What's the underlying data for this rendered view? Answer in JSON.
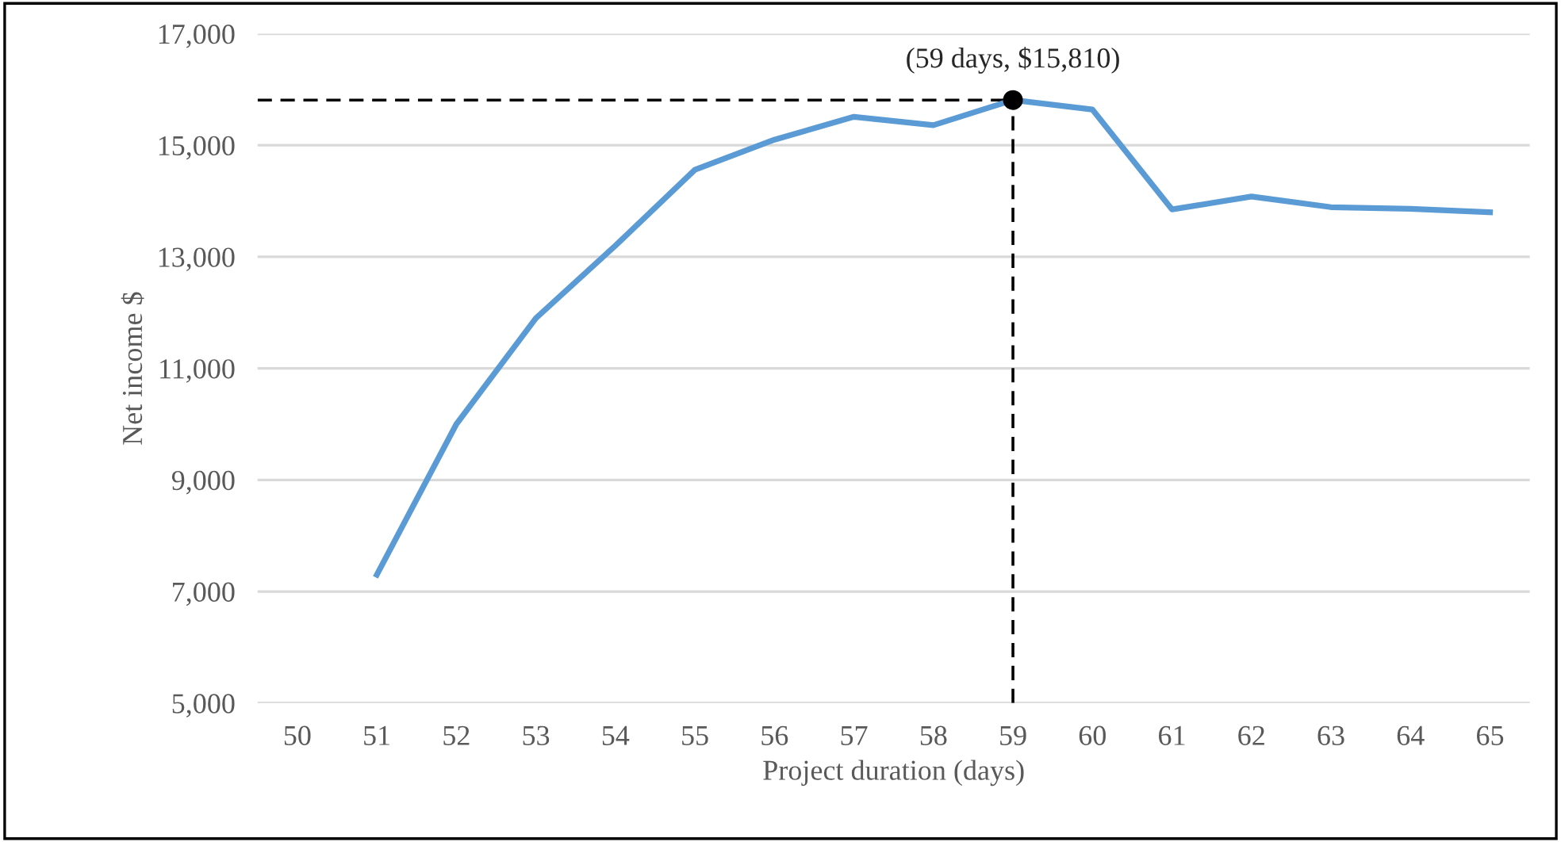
{
  "chart_data": {
    "type": "line",
    "xlabel": "Project duration (days)",
    "ylabel": "Net income $",
    "categories": [
      "50",
      "51",
      "52",
      "53",
      "54",
      "55",
      "56",
      "57",
      "58",
      "59",
      "60",
      "61",
      "62",
      "63",
      "64",
      "65"
    ],
    "series": [
      {
        "color": "#5b9bd5",
        "values": [
          null,
          7300,
          10000,
          11900,
          13200,
          14560,
          15100,
          15510,
          15360,
          15810,
          15640,
          13850,
          14080,
          13890,
          13860,
          13800
        ]
      }
    ],
    "ylim": [
      5000,
      17000
    ],
    "yticks": [
      {
        "value": 5000,
        "label": "5,000"
      },
      {
        "value": 7000,
        "label": "7,000"
      },
      {
        "value": 9000,
        "label": "9,000"
      },
      {
        "value": 11000,
        "label": "11,000"
      },
      {
        "value": 13000,
        "label": "13,000"
      },
      {
        "value": 15000,
        "label": "15,000"
      },
      {
        "value": 17000,
        "label": "17,000"
      }
    ],
    "grid": "y",
    "marker": "none",
    "line_style": "solid",
    "ref_lines": [
      {
        "axis": "x",
        "value": "59",
        "color": "#000000",
        "line_style": "dashed"
      },
      {
        "axis": "y",
        "value": 15810,
        "color": "#000000",
        "line_style": "dashed"
      }
    ],
    "annotations": [
      {
        "text": "(59 days, $15,810)",
        "x": "59",
        "y": 15810
      }
    ]
  }
}
